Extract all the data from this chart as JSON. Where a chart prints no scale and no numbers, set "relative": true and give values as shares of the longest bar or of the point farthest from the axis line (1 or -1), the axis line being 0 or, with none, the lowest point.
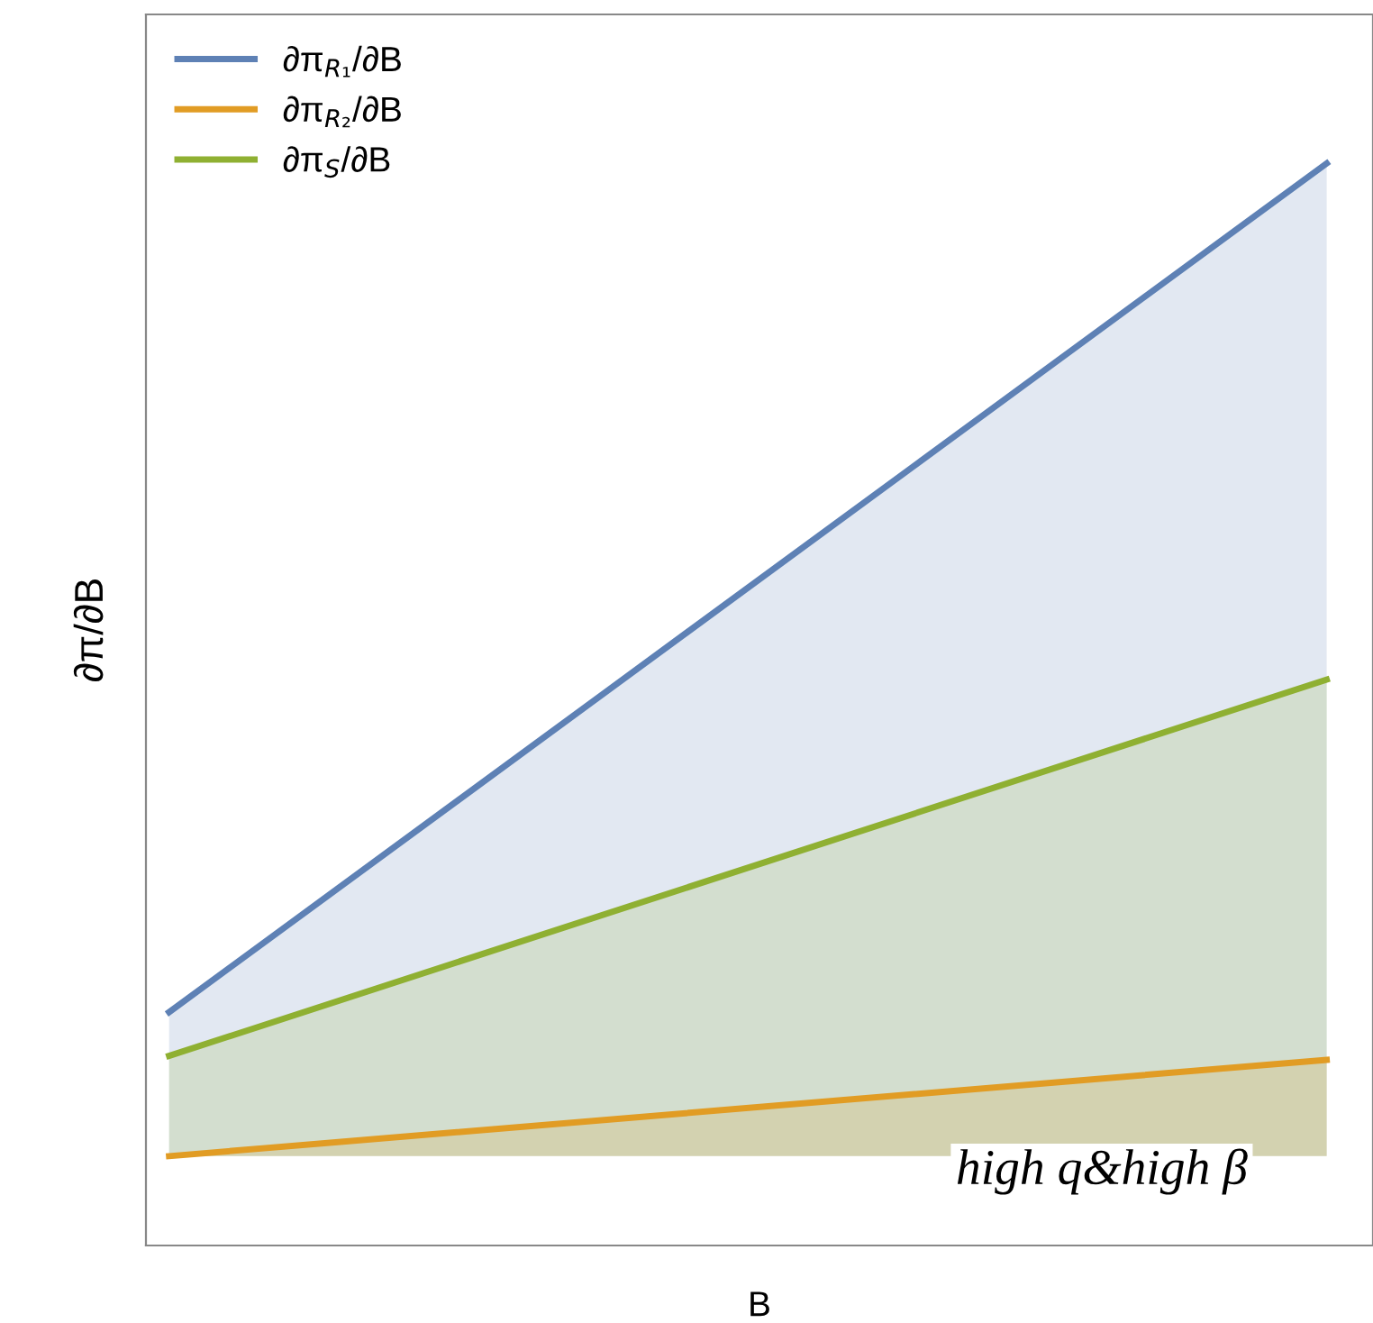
{
  "chart_data": {
    "type": "area",
    "relative": true,
    "xlabel": "B",
    "ylabel": "∂π/∂B",
    "categories": [
      null,
      null
    ],
    "series": [
      {
        "name": "∂π$_{R₁}$/∂B",
        "color": "#5e81b5",
        "values": [
          0.145,
          1
        ]
      },
      {
        "name": "∂π$_{R₂}$/∂B",
        "color": "#e19c24",
        "values": [
          0,
          0.097
        ]
      },
      {
        "name": "∂π$_{S}$/∂B",
        "color": "#8fb032",
        "values": [
          0.101,
          0.48
        ]
      }
    ],
    "annotations": [
      "high q&high β"
    ],
    "legend": "top left",
    "grid": false,
    "tick_labels": false
  }
}
